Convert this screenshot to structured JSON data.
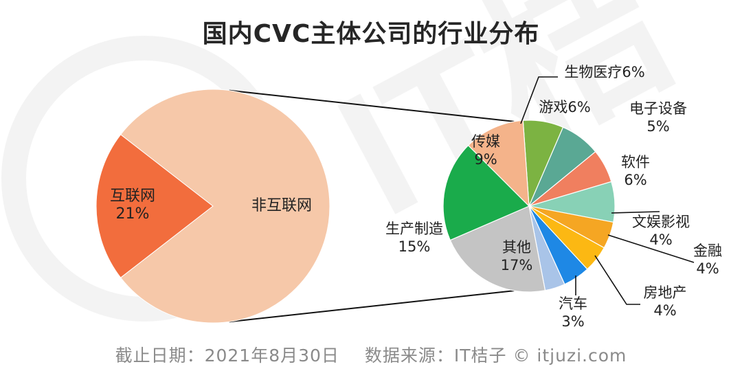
{
  "title": "国内CVC主体公司的行业分布",
  "footer": {
    "date": "截止日期：2021年8月30日",
    "source": "数据来源：IT桔子 © itjuzi.com"
  },
  "chart_data": [
    {
      "type": "pie",
      "slices": [
        {
          "name": "互联网",
          "value": 21,
          "value_label": "21%",
          "color": "#f26d3d"
        },
        {
          "name": "非互联网",
          "value": 79,
          "value_label": "",
          "color": "#f6c8a9"
        }
      ]
    },
    {
      "type": "pie",
      "slices": [
        {
          "name": "生物医疗",
          "value": 6,
          "value_label": "6%",
          "color": "#7cb342"
        },
        {
          "name": "游戏",
          "value": 6,
          "value_label": "6%",
          "color": "#5aa894"
        },
        {
          "name": "电子设备",
          "value": 5,
          "value_label": "5%",
          "color": "#f07f5f"
        },
        {
          "name": "软件",
          "value": 6,
          "value_label": "6%",
          "color": "#88d1b6"
        },
        {
          "name": "文娱影视",
          "value": 4,
          "value_label": "4%",
          "color": "#f5a623"
        },
        {
          "name": "金融",
          "value": 4,
          "value_label": "4%",
          "color": "#fcb813"
        },
        {
          "name": "房地产",
          "value": 4,
          "value_label": "4%",
          "color": "#1e88e5"
        },
        {
          "name": "汽车",
          "value": 3,
          "value_label": "3%",
          "color": "#a9c4e8"
        },
        {
          "name": "其他",
          "value": 17,
          "value_label": "17%",
          "color": "#c4c4c4"
        },
        {
          "name": "生产制造",
          "value": 15,
          "value_label": "15%",
          "color": "#1aab4b"
        },
        {
          "name": "传媒",
          "value": 9,
          "value_label": "9%",
          "color": "#f4b38a"
        }
      ]
    }
  ]
}
